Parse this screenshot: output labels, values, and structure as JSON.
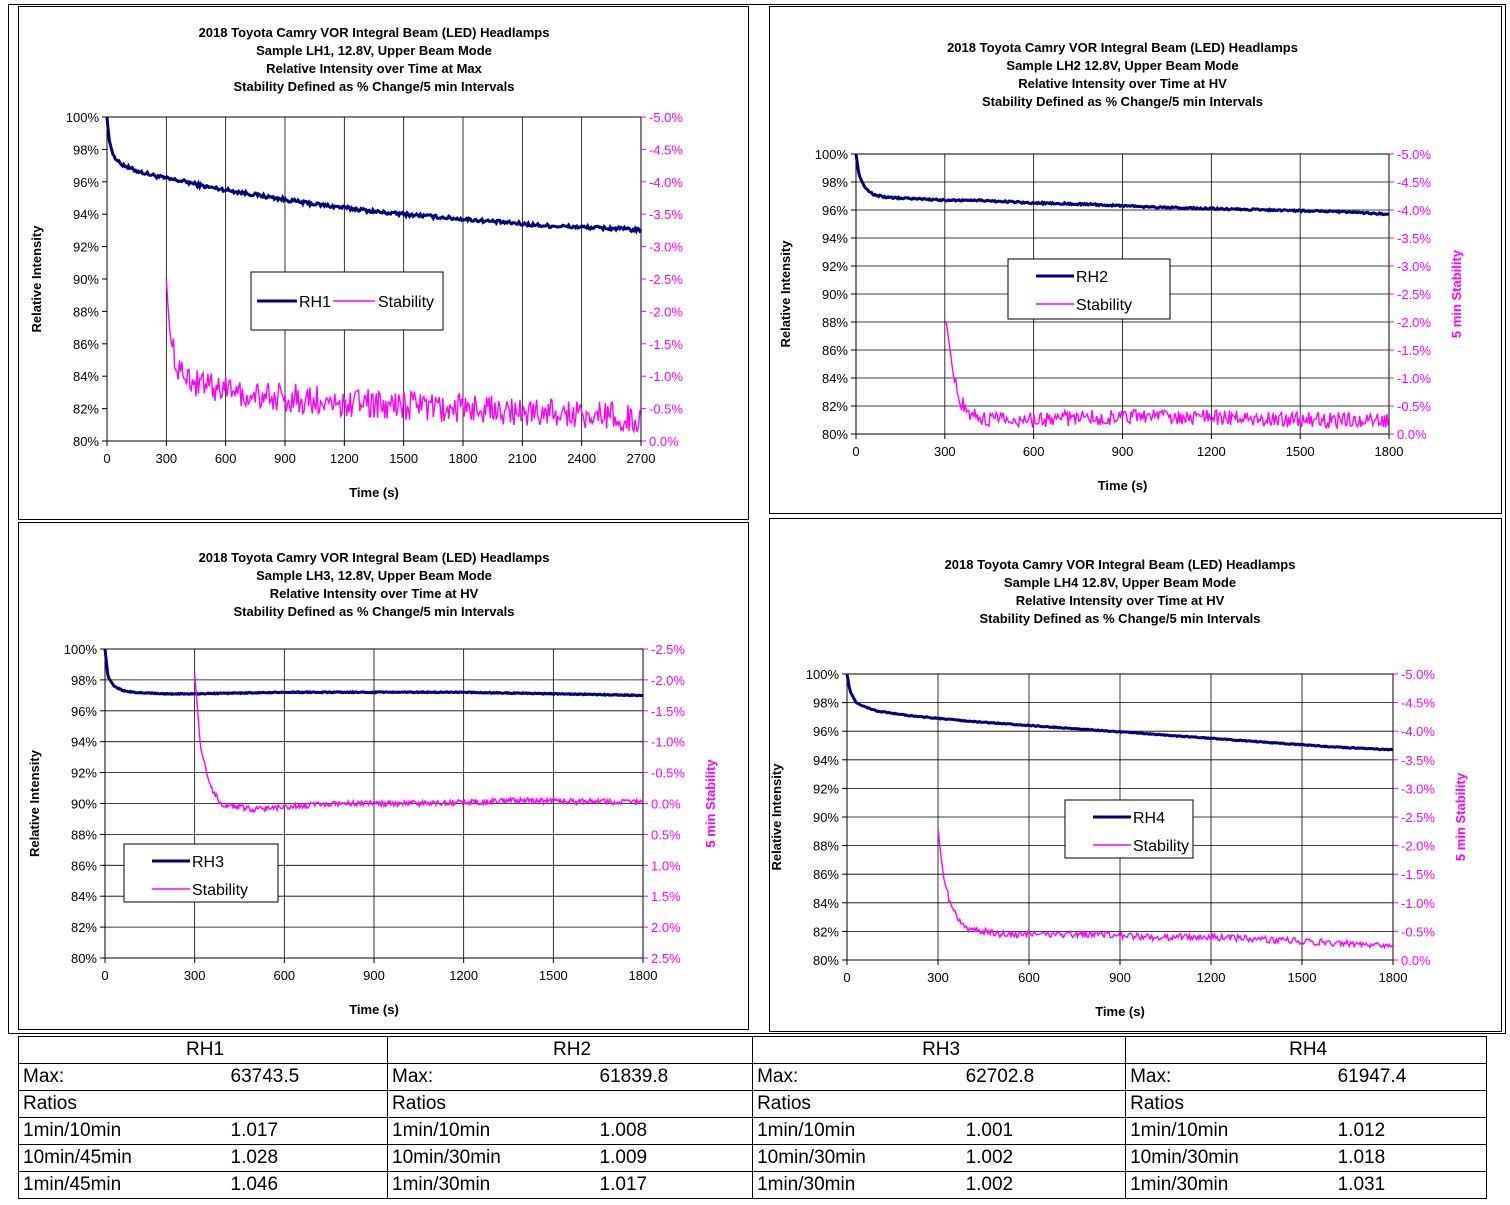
{
  "colors": {
    "intensity": "#000080",
    "stability": "#ff00ff",
    "grid": "#000000"
  },
  "chart_data": [
    {
      "type": "line",
      "title": [
        "2018  Toyota  Camry  VOR  Integral  Beam  (LED)  Headlamps",
        "Sample  LH1, 12.8V,  Upper Beam  Mode",
        "Relative  Intensity  over  Time  at  Max",
        "Stability  Defined  as  % Change/5  min  Intervals"
      ],
      "xlabel": "Time  (s)",
      "ylabel": "Relative  Intensity",
      "y2label": "",
      "xlim": [
        0,
        2700
      ],
      "ylim": [
        0.8,
        1.0
      ],
      "y2lim": [
        0.0,
        -5.0
      ],
      "xticks": [
        "0",
        "300",
        "600",
        "900",
        "1200",
        "1500",
        "1800",
        "2100",
        "2400",
        "2700"
      ],
      "yticks": [
        "80%",
        "82%",
        "84%",
        "86%",
        "88%",
        "90%",
        "92%",
        "94%",
        "96%",
        "98%",
        "100%"
      ],
      "y2ticks": [
        "0.0%",
        "-0.5%",
        "-1.0%",
        "-1.5%",
        "-2.0%",
        "-2.5%",
        "-3.0%",
        "-3.5%",
        "-4.0%",
        "-4.5%",
        "-5.0%"
      ],
      "grid": "vertical",
      "legend": {
        "placement": "center",
        "layout": "horizontal",
        "labels": [
          "RH1",
          "Stability"
        ]
      },
      "series": [
        {
          "name": "RH1",
          "x": [
            0,
            10,
            30,
            60,
            120,
            200,
            300,
            400,
            500,
            600,
            700,
            800,
            900,
            1000,
            1200,
            1400,
            1500,
            1600,
            1800,
            2000,
            2100,
            2200,
            2400,
            2600,
            2700
          ],
          "y": [
            1.0,
            0.986,
            0.977,
            0.972,
            0.968,
            0.965,
            0.962,
            0.96,
            0.957,
            0.955,
            0.953,
            0.951,
            0.949,
            0.947,
            0.944,
            0.941,
            0.94,
            0.939,
            0.937,
            0.935,
            0.934,
            0.933,
            0.932,
            0.931,
            0.93
          ]
        },
        {
          "name": "Stability",
          "x": [
            300,
            310,
            320,
            340,
            360,
            380,
            400,
            450,
            500,
            600,
            700,
            800,
            1000,
            1200,
            1500,
            1800,
            2100,
            2400,
            2700
          ],
          "y": [
            -2.5,
            -2.0,
            -1.6,
            -1.3,
            -1.1,
            -1.0,
            -0.95,
            -0.9,
            -0.85,
            -0.8,
            -0.75,
            -0.7,
            -0.65,
            -0.6,
            -0.55,
            -0.5,
            -0.45,
            -0.4,
            -0.35
          ]
        }
      ]
    },
    {
      "type": "line",
      "title": [
        "2018  Toyota  Camry  VOR  Integral  Beam  (LED)  Headlamps",
        "Sample  LH2 12.8V,  Upper Beam  Mode",
        "Relative  Intensity  over  Time  at  HV",
        "Stability  Defined  as  % Change/5  min  Intervals"
      ],
      "xlabel": "Time  (s)",
      "ylabel": "Relative  Intensity",
      "y2label": "5 min Stability",
      "xlim": [
        0,
        1800
      ],
      "ylim": [
        0.8,
        1.0
      ],
      "y2lim": [
        0.0,
        -5.0
      ],
      "xticks": [
        "0",
        "300",
        "600",
        "900",
        "1200",
        "1500",
        "1800"
      ],
      "yticks": [
        "80%",
        "82%",
        "84%",
        "86%",
        "88%",
        "90%",
        "92%",
        "94%",
        "96%",
        "98%",
        "100%"
      ],
      "y2ticks": [
        "0.0%",
        "-0.5%",
        "-1.0%",
        "-1.5%",
        "-2.0%",
        "-2.5%",
        "-3.0%",
        "-3.5%",
        "-4.0%",
        "-4.5%",
        "-5.0%"
      ],
      "grid": "both",
      "legend": {
        "placement": "center",
        "layout": "vertical",
        "labels": [
          "RH2",
          "Stability"
        ]
      },
      "series": [
        {
          "name": "RH2",
          "x": [
            0,
            10,
            30,
            60,
            100,
            200,
            300,
            400,
            600,
            800,
            1000,
            1200,
            1400,
            1600,
            1800
          ],
          "y": [
            1.0,
            0.985,
            0.976,
            0.971,
            0.969,
            0.968,
            0.967,
            0.967,
            0.965,
            0.964,
            0.962,
            0.961,
            0.96,
            0.959,
            0.957
          ]
        },
        {
          "name": "Stability",
          "x": [
            305,
            315,
            330,
            350,
            380,
            420,
            500,
            600,
            800,
            1000,
            1200,
            1400,
            1600,
            1800
          ],
          "y": [
            -2.0,
            -1.6,
            -1.0,
            -0.6,
            -0.4,
            -0.3,
            -0.25,
            -0.25,
            -0.3,
            -0.3,
            -0.3,
            -0.25,
            -0.25,
            -0.25
          ]
        }
      ]
    },
    {
      "type": "line",
      "title": [
        "2018  Toyota  Camry  VOR  Integral  Beam  (LED)  Headlamps",
        "Sample  LH3, 12.8V,  Upper Beam  Mode",
        "Relative  Intensity  over  Time  at  HV",
        "Stability  Defined  as  % Change/5  min  Intervals"
      ],
      "xlabel": "Time  (s)",
      "ylabel": "Relative  Intensity",
      "y2label": "5 min Stability",
      "xlim": [
        0,
        1800
      ],
      "ylim": [
        0.8,
        1.0
      ],
      "y2lim": [
        2.5,
        -2.5
      ],
      "xticks": [
        "0",
        "300",
        "600",
        "900",
        "1200",
        "1500",
        "1800"
      ],
      "yticks": [
        "80%",
        "82%",
        "84%",
        "86%",
        "88%",
        "90%",
        "92%",
        "94%",
        "96%",
        "98%",
        "100%"
      ],
      "y2ticks": [
        "2.5%",
        "2.0%",
        "1.5%",
        "1.0%",
        "0.5%",
        "0.0%",
        "-0.5%",
        "-1.0%",
        "-1.5%",
        "-2.0%",
        "-2.5%"
      ],
      "grid": "both",
      "legend": {
        "placement": "bottom-left",
        "layout": "vertical",
        "labels": [
          "RH3",
          "Stability"
        ]
      },
      "series": [
        {
          "name": "RH3",
          "x": [
            0,
            10,
            30,
            60,
            100,
            200,
            300,
            600,
            900,
            1200,
            1500,
            1800
          ],
          "y": [
            1.0,
            0.982,
            0.976,
            0.973,
            0.972,
            0.971,
            0.971,
            0.972,
            0.972,
            0.972,
            0.971,
            0.97
          ]
        },
        {
          "name": "Stability",
          "x": [
            300,
            310,
            320,
            340,
            360,
            380,
            400,
            450,
            500,
            600,
            800,
            1000,
            1200,
            1400,
            1600,
            1800
          ],
          "y": [
            -2.1,
            -1.5,
            -0.9,
            -0.5,
            -0.2,
            -0.05,
            0.05,
            0.05,
            0.1,
            0.05,
            0.0,
            0.0,
            -0.02,
            -0.05,
            -0.03,
            -0.02
          ]
        }
      ]
    },
    {
      "type": "line",
      "title": [
        "2018  Toyota  Camry  VOR  Integral  Beam  (LED)  Headlamps",
        "Sample  LH4 12.8V,  Upper Beam  Mode",
        "Relative  Intensity  over  Time  at  HV",
        "Stability  Defined  as  % Change/5  min  Intervals"
      ],
      "xlabel": "Time  (s)",
      "ylabel": "Relative  Intensity",
      "y2label": "5 min Stability",
      "xlim": [
        0,
        1800
      ],
      "ylim": [
        0.8,
        1.0
      ],
      "y2lim": [
        0.0,
        -5.0
      ],
      "xticks": [
        "0",
        "300",
        "600",
        "900",
        "1200",
        "1500",
        "1800"
      ],
      "yticks": [
        "80%",
        "82%",
        "84%",
        "86%",
        "88%",
        "90%",
        "92%",
        "94%",
        "96%",
        "98%",
        "100%"
      ],
      "y2ticks": [
        "0.0%",
        "-0.5%",
        "-1.0%",
        "-1.5%",
        "-2.0%",
        "-2.5%",
        "-3.0%",
        "-3.5%",
        "-4.0%",
        "-4.5%",
        "-5.0%"
      ],
      "grid": "both",
      "legend": {
        "placement": "center-right",
        "layout": "vertical",
        "labels": [
          "RH4",
          "Stability"
        ]
      },
      "series": [
        {
          "name": "RH4",
          "x": [
            0,
            10,
            30,
            60,
            100,
            200,
            300,
            400,
            600,
            800,
            1000,
            1200,
            1400,
            1600,
            1800
          ],
          "y": [
            1.0,
            0.988,
            0.98,
            0.977,
            0.974,
            0.971,
            0.969,
            0.967,
            0.964,
            0.961,
            0.958,
            0.955,
            0.952,
            0.949,
            0.947
          ]
        },
        {
          "name": "Stability",
          "x": [
            300,
            310,
            320,
            340,
            360,
            380,
            400,
            450,
            500,
            600,
            800,
            1000,
            1200,
            1400,
            1600,
            1800
          ],
          "y": [
            -2.3,
            -1.8,
            -1.4,
            -1.0,
            -0.8,
            -0.65,
            -0.55,
            -0.5,
            -0.45,
            -0.45,
            -0.45,
            -0.4,
            -0.4,
            -0.35,
            -0.3,
            -0.25
          ]
        }
      ]
    }
  ],
  "ratio_table": [
    {
      "title": "RH1",
      "max_label": "Max:",
      "max_value": "63743.5",
      "ratios_label": "Ratios",
      "rows": [
        [
          "1min/10min",
          "1.017"
        ],
        [
          "10min/45min",
          "1.028"
        ],
        [
          "1min/45min",
          "1.046"
        ]
      ]
    },
    {
      "title": "RH2",
      "max_label": "Max:",
      "max_value": "61839.8",
      "ratios_label": "Ratios",
      "rows": [
        [
          "1min/10min",
          "1.008"
        ],
        [
          "10min/30min",
          "1.009"
        ],
        [
          "1min/30min",
          "1.017"
        ]
      ]
    },
    {
      "title": "RH3",
      "max_label": "Max:",
      "max_value": "62702.8",
      "ratios_label": "Ratios",
      "rows": [
        [
          "1min/10min",
          "1.001"
        ],
        [
          "10min/30min",
          "1.002"
        ],
        [
          "1min/30min",
          "1.002"
        ]
      ]
    },
    {
      "title": "RH4",
      "max_label": "Max:",
      "max_value": "61947.4",
      "ratios_label": "Ratios",
      "rows": [
        [
          "1min/10min",
          "1.012"
        ],
        [
          "10min/30min",
          "1.018"
        ],
        [
          "1min/30min",
          "1.031"
        ]
      ]
    }
  ]
}
